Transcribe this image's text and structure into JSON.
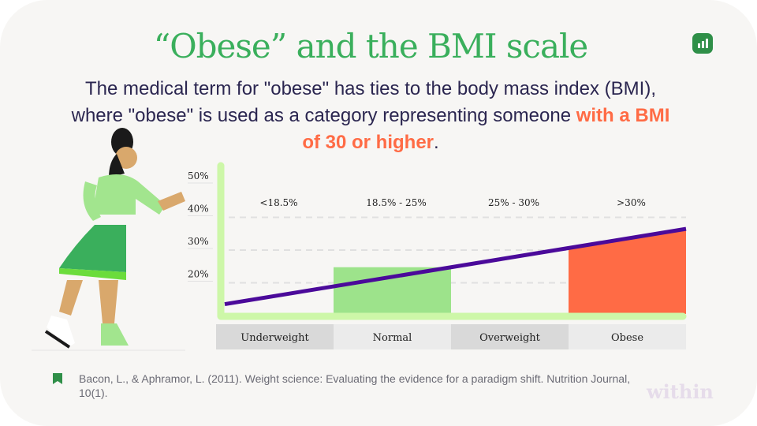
{
  "title": "“Obese” and the BMI scale",
  "subtitle": {
    "text": "The medical term for \"obese\" has ties to the body mass index (BMI), where \"obese\" is used as a category representing someone ",
    "highlight": "with a BMI of 30 or higher",
    "end": "."
  },
  "logo_icon": "bar-chart-icon",
  "chart_data": {
    "type": "bar",
    "y_ticks": [
      "20%",
      "30%",
      "40%",
      "50%"
    ],
    "ylim": [
      10,
      50
    ],
    "ranges": [
      "<18.5%",
      "18.5% - 25%",
      "25% - 30%",
      ">30%"
    ],
    "categories": [
      "Underweight",
      "Normal",
      "Overweight",
      "Obese"
    ],
    "highlighted": {
      "Normal": "#9de38b",
      "Obese": "#ff6b45"
    },
    "trend_line": {
      "start": 13,
      "end": 36,
      "color": "#4b0a9a"
    },
    "grid": "dashed"
  },
  "citation": {
    "icon": "bookmark-icon",
    "text": "Bacon, L., & Aphramor, L. (2011). Weight science: Evaluating the evidence for a paradigm shift. Nutrition Journal, 10(1)."
  },
  "brand": "within"
}
